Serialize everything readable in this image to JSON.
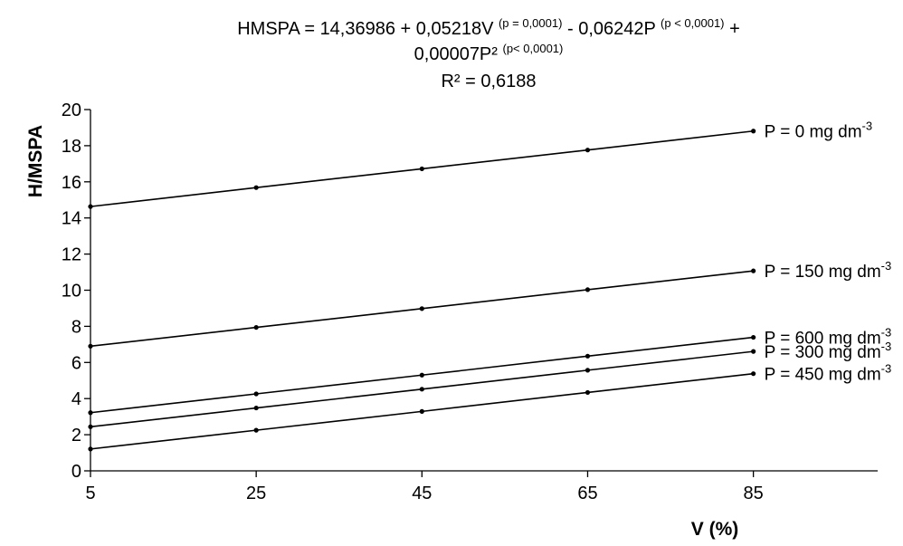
{
  "chart_data": {
    "type": "line",
    "title": {
      "line1": [
        {
          "text": "HMSPA = 14,36986 + 0,05218V ",
          "sup": false
        },
        {
          "text": "(p = 0,0001)",
          "sup": true
        },
        {
          "text": " - 0,06242P ",
          "sup": false
        },
        {
          "text": "(p < 0,0001)",
          "sup": true
        },
        {
          "text": " +",
          "sup": false
        }
      ],
      "line2": [
        {
          "text": "0,00007P² ",
          "sup": false
        },
        {
          "text": "(p< 0,0001)",
          "sup": true
        }
      ],
      "line3": "R² = 0,6188"
    },
    "xlabel": "V (%)",
    "ylabel": "H/MSPA",
    "xlim": [
      5,
      100
    ],
    "ylim": [
      0,
      20
    ],
    "xticks": [
      5,
      25,
      45,
      65,
      85
    ],
    "yticks": [
      0,
      2,
      4,
      6,
      8,
      10,
      12,
      14,
      16,
      18,
      20
    ],
    "x": [
      5,
      25,
      45,
      65,
      85
    ],
    "series": [
      {
        "name": "P = 0 mg dm",
        "unit_exp": "-3",
        "values": [
          14.63,
          15.68,
          16.72,
          17.76,
          18.81
        ]
      },
      {
        "name": "P = 150 mg dm",
        "unit_exp": "-3",
        "values": [
          6.9,
          7.94,
          8.98,
          10.03,
          11.07
        ]
      },
      {
        "name": "P = 600 mg dm",
        "unit_exp": "-3",
        "values": [
          3.22,
          4.26,
          5.3,
          6.35,
          7.39
        ]
      },
      {
        "name": "P = 300 mg dm",
        "unit_exp": "-3",
        "values": [
          2.44,
          3.48,
          4.52,
          5.57,
          6.61
        ]
      },
      {
        "name": "P = 450 mg dm",
        "unit_exp": "-3",
        "values": [
          1.21,
          2.25,
          3.29,
          4.34,
          5.38
        ]
      }
    ],
    "legend": "inline-right"
  }
}
